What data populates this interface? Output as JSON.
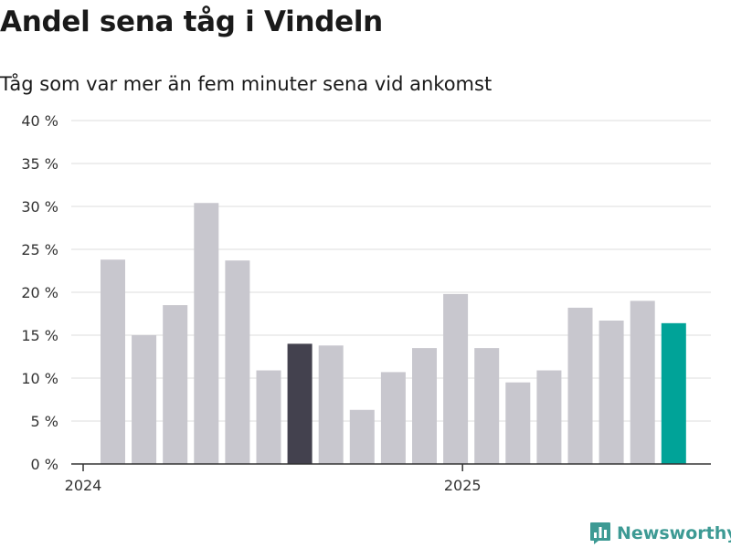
{
  "header": {
    "title": "Andel sena tåg i Vindeln",
    "subtitle": "Tåg som var mer än fem minuter sena vid ankomst"
  },
  "brand": {
    "name": "Newsworthy",
    "icon": "bar-chart-logo-icon",
    "color": "#3d9a94"
  },
  "colors": {
    "default": "#c8c7ce",
    "highlight": "#43414e",
    "latest": "#00a398",
    "axis": "#333333",
    "grid": "#dddddd"
  },
  "chart_data": {
    "type": "bar",
    "title": "Andel sena tåg i Vindeln",
    "subtitle": "Tåg som var mer än fem minuter sena vid ankomst",
    "ylim": [
      0,
      40
    ],
    "yticks": [
      0,
      5,
      10,
      15,
      20,
      25,
      30,
      35,
      40
    ],
    "ytick_labels": [
      "0 %",
      "5 %",
      "10 %",
      "15 %",
      "20 %",
      "25 %",
      "30 %",
      "35 %",
      "40 %"
    ],
    "xtick_labels": [
      {
        "label": "2024",
        "index": 0
      },
      {
        "label": "2025",
        "index": 12
      }
    ],
    "values": [
      23.8,
      15.0,
      18.5,
      30.4,
      23.7,
      10.9,
      14.0,
      13.8,
      6.3,
      10.7,
      13.5,
      19.8,
      13.5,
      9.5,
      10.9,
      18.2,
      16.7,
      19.0,
      16.4
    ],
    "highlight_index": 6,
    "latest_index": 18,
    "grid": true
  }
}
